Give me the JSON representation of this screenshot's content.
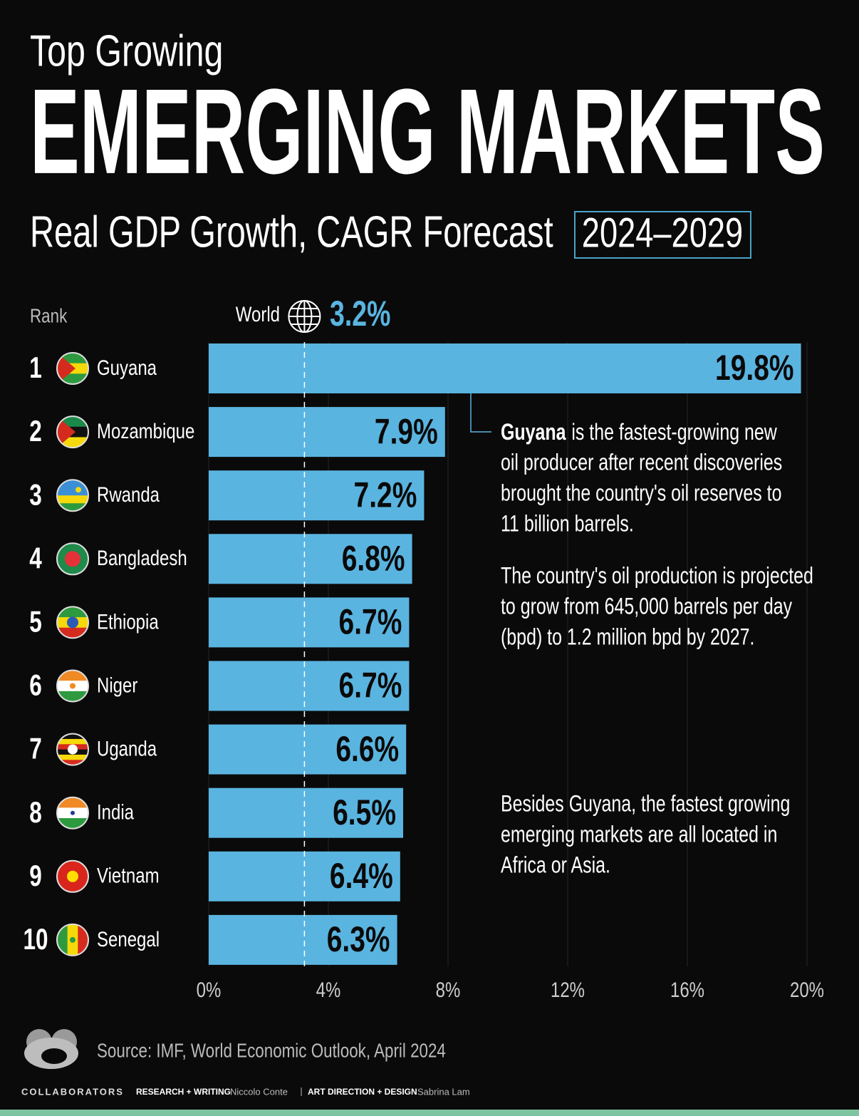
{
  "chart_data": {
    "type": "bar",
    "supertitle": "Top Growing",
    "title": "EMERGING MARKETS",
    "subtitle": "Real GDP Growth, CAGR Forecast",
    "period": "2024–2029",
    "rank_label": "Rank",
    "ranks": [
      1,
      2,
      3,
      4,
      5,
      6,
      7,
      8,
      9,
      10
    ],
    "categories": [
      "Guyana",
      "Mozambique",
      "Rwanda",
      "Bangladesh",
      "Ethiopia",
      "Niger",
      "Uganda",
      "India",
      "Vietnam",
      "Senegal"
    ],
    "values": [
      19.8,
      7.9,
      7.2,
      6.8,
      6.7,
      6.7,
      6.6,
      6.5,
      6.4,
      6.3
    ],
    "value_labels": [
      "19.8%",
      "7.9%",
      "7.2%",
      "6.8%",
      "6.7%",
      "6.7%",
      "6.6%",
      "6.5%",
      "6.4%",
      "6.3%"
    ],
    "color": "#5ab4e0",
    "reference": {
      "label": "World",
      "value": 3.2,
      "value_label": "3.2%"
    },
    "xlim": [
      0,
      20
    ],
    "xticks": [
      {
        "value": 0,
        "label": "0%"
      },
      {
        "value": 4,
        "label": "4%"
      },
      {
        "value": 8,
        "label": "8%"
      },
      {
        "value": 12,
        "label": "12%"
      },
      {
        "value": 16,
        "label": "16%"
      },
      {
        "value": 20,
        "label": "20%"
      }
    ],
    "grid": true,
    "annotations": [
      {
        "bold": "Guyana",
        "lines": [
          "is the fastest-growing new",
          "oil producer after recent discoveries",
          "brought the country's oil reserves to",
          "11 billion barrels."
        ]
      },
      {
        "lines": [
          "The country's oil production is projected",
          "to grow from 645,000 barrels per day",
          "(bpd) to 1.2 million bpd by 2027."
        ]
      },
      {
        "lines": [
          "Besides Guyana, the fastest growing",
          "emerging markets are all located in",
          "Africa or Asia."
        ]
      }
    ],
    "source": "Source: IMF, World Economic Outlook, April 2024",
    "credits": {
      "brand": "COLLABORATORS",
      "role1": "RESEARCH + WRITING",
      "name1": "Niccolo Conte",
      "role2": "ART DIRECTION + DESIGN",
      "name2": "Sabrina Lam"
    }
  }
}
